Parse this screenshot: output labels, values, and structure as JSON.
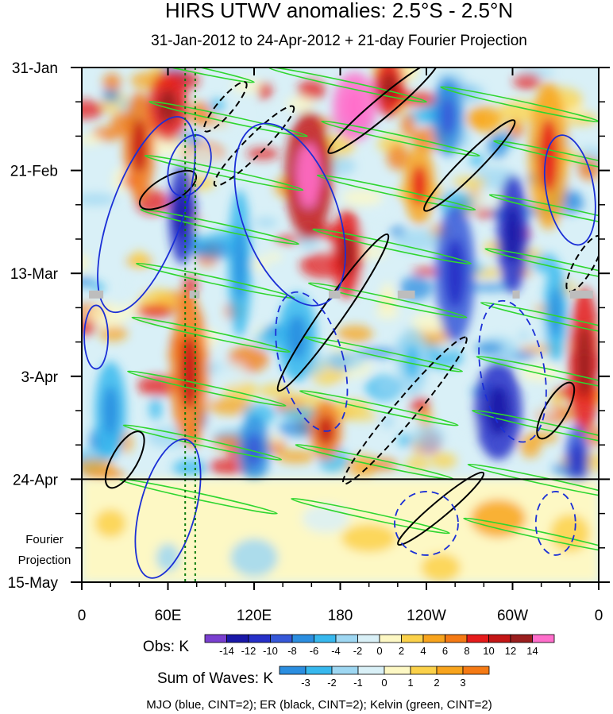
{
  "chart_data": {
    "type": "heatmap",
    "title": "HIRS UTWV anomalies: 2.5°S - 2.5°N",
    "subtitle": "31-Jan-2012 to 24-Apr-2012 + 21-day Fourier Projection",
    "x_ticks": [
      "0",
      "60E",
      "120E",
      "180",
      "120W",
      "60W",
      "0"
    ],
    "x_tick_longitudes": [
      0,
      60,
      120,
      180,
      240,
      300,
      360
    ],
    "xlim": [
      0,
      360
    ],
    "y_ticks": [
      "31-Jan",
      "21-Feb",
      "13-Mar",
      "3-Apr",
      "24-Apr",
      "15-May"
    ],
    "y_tick_days": [
      0,
      21,
      42,
      63,
      84,
      105
    ],
    "ylim_days": [
      0,
      105
    ],
    "observation_end_day": 84,
    "projection_label": [
      "Fourier",
      "Projection"
    ],
    "reference_longitudes_dotted": [
      72,
      79
    ],
    "obs_colorbar": {
      "label": "Obs: K",
      "levels": [
        "-14",
        "-12",
        "-10",
        "-8",
        "-6",
        "-4",
        "-2",
        "0",
        "2",
        "4",
        "6",
        "8",
        "10",
        "12",
        "14"
      ],
      "colors": [
        "#7a3fd0",
        "#1a18a8",
        "#2730c8",
        "#3658d8",
        "#2b8ee0",
        "#37b8ee",
        "#9ed7f2",
        "#d9f0f7",
        "#fdf8c4",
        "#fbd14a",
        "#f8a41d",
        "#f57a14",
        "#e61b1b",
        "#c41616",
        "#9a1e1e",
        "#ff6ecb"
      ]
    },
    "wave_colorbar": {
      "label": "Sum of Waves: K",
      "levels": [
        "-3",
        "-2",
        "-1",
        "0",
        "1",
        "2",
        "3"
      ],
      "colors": [
        "#2b8ee0",
        "#37b8ee",
        "#9ed7f2",
        "#d9f0f7",
        "#fdf8c4",
        "#fbd14a",
        "#f8a41d",
        "#f57a14"
      ]
    },
    "contour_legend": "MJO (blue, CINT=2); ER (black, CINT=2); Kelvin (green, CINT=2)",
    "contour_series": [
      {
        "name": "MJO",
        "color": "#1b2fd6",
        "cint": 2
      },
      {
        "name": "ER",
        "color": "#000000",
        "cint": 2
      },
      {
        "name": "Kelvin",
        "color": "#2fd62f",
        "cint": 2
      }
    ]
  }
}
